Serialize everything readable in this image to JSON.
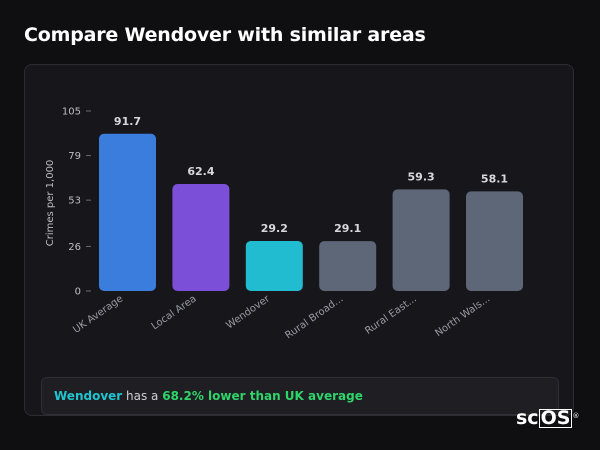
{
  "page": {
    "title": "Compare Wendover with similar areas"
  },
  "summary": {
    "area": "Wendover",
    "middle": " has a ",
    "highlight": "68.2% lower than UK average"
  },
  "logo": {
    "text_plain": "sc",
    "text_boxed": "OS",
    "mark": "®"
  },
  "chart_data": {
    "type": "bar",
    "title": "",
    "xlabel": "",
    "ylabel": "Crimes per 1,000",
    "categories": [
      "UK Average",
      "Local Area",
      "Wendover",
      "Rural Broad...",
      "Rural East...",
      "North Wals..."
    ],
    "values": [
      91.7,
      62.4,
      29.2,
      29.1,
      59.3,
      58.1
    ],
    "value_labels": [
      "91.7",
      "62.4",
      "29.2",
      "29.1",
      "59.3",
      "58.1"
    ],
    "colors": [
      "#3b7ddd",
      "#7b4fd8",
      "#22bcd0",
      "#5d6777",
      "#5d6777",
      "#5d6777"
    ],
    "yticks": [
      0,
      26,
      53,
      79,
      105
    ],
    "ylim": [
      0,
      105
    ],
    "grid": false,
    "legend": "none"
  }
}
